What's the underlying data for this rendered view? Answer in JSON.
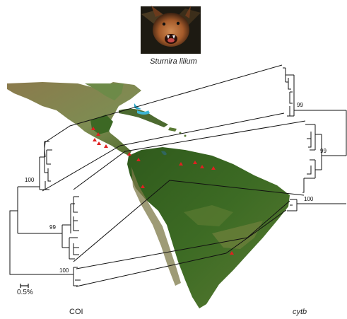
{
  "species": {
    "name": "Sturnira lilium",
    "photo_icon": "bat-photo"
  },
  "left_tree": {
    "label": "COI",
    "bootstrap": [
      "100",
      "99",
      "100"
    ],
    "scale_label": "0.5%"
  },
  "right_tree": {
    "label": "cytb",
    "bootstrap": [
      "99",
      "99",
      "100"
    ]
  },
  "map": {
    "icon": "americas-satellite-map",
    "sample_marker_color": "#e02020",
    "ocean_color": "#ffffff"
  }
}
